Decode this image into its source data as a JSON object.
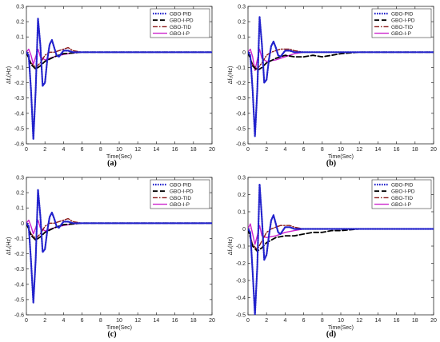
{
  "figure": {
    "series_styles": [
      {
        "name": "GBO-PID",
        "color": "#2222cc",
        "dash": "dotted"
      },
      {
        "name": "GBO-I-PD",
        "color": "#000000",
        "dash": "dashed"
      },
      {
        "name": "GBO-TID",
        "color": "#8b1a1a",
        "dash": "dashdot"
      },
      {
        "name": "GBO-I-P",
        "color": "#cc22cc",
        "dash": "solid"
      }
    ]
  },
  "chart_data": [
    {
      "type": "line",
      "panel_label": "(a)",
      "xlabel": "Time(Sec)",
      "ylabel": "Δf₁(Hz)",
      "xlim": [
        0,
        20
      ],
      "ylim": [
        -0.6,
        0.3
      ],
      "xticks": [
        "0",
        "2",
        "4",
        "6",
        "8",
        "10",
        "12",
        "14",
        "16",
        "18",
        "20"
      ],
      "yticks": [
        "0.3",
        "0.2",
        "0.1",
        "0",
        "-0.1",
        "-0.2",
        "-0.3",
        "-0.4",
        "-0.5",
        "-0.6"
      ],
      "legend_position": "top-right",
      "series": [
        {
          "name": "GBO-PID",
          "x": [
            0,
            0.25,
            0.5,
            0.75,
            1.0,
            1.25,
            1.5,
            1.75,
            2.0,
            2.25,
            2.5,
            2.75,
            3.0,
            3.25,
            3.5,
            3.75,
            4.0,
            4.5,
            5.0,
            6.0,
            7.0,
            8.0,
            10,
            12,
            15,
            20
          ],
          "y": [
            0,
            -0.02,
            -0.25,
            -0.57,
            -0.25,
            0.22,
            0.05,
            -0.22,
            -0.2,
            -0.05,
            0.05,
            0.08,
            0.03,
            -0.02,
            -0.03,
            -0.01,
            0.01,
            0.01,
            0,
            0,
            0,
            0,
            0,
            0,
            0,
            0
          ]
        },
        {
          "name": "GBO-I-PD",
          "x": [
            0,
            0.5,
            1.0,
            1.5,
            2.0,
            3.0,
            4.0,
            5.0,
            6.0,
            7.0,
            8.0,
            9.0,
            10,
            12,
            15,
            20
          ],
          "y": [
            0,
            -0.08,
            -0.11,
            -0.09,
            -0.06,
            -0.03,
            -0.01,
            -0.005,
            0,
            0,
            0,
            0,
            0,
            0,
            0,
            0
          ]
        },
        {
          "name": "GBO-TID",
          "x": [
            0,
            0.5,
            1.0,
            1.5,
            2.0,
            2.5,
            3.0,
            3.5,
            4.0,
            4.5,
            5.0,
            6.0,
            7.0,
            8.0,
            10,
            12,
            15,
            20
          ],
          "y": [
            0,
            -0.07,
            -0.1,
            -0.07,
            -0.02,
            0.0,
            0.0,
            0.01,
            0.02,
            0.03,
            0.01,
            0,
            0,
            0,
            0,
            0,
            0,
            0
          ]
        },
        {
          "name": "GBO-I-P",
          "x": [
            0,
            0.25,
            0.5,
            0.75,
            1.0,
            1.25,
            1.5,
            2.0,
            3.0,
            4.0,
            5.0,
            6.0,
            7.0,
            8.0,
            10,
            12,
            15,
            20
          ],
          "y": [
            0,
            0.02,
            -0.02,
            -0.08,
            -0.03,
            0.02,
            -0.03,
            -0.05,
            -0.03,
            -0.015,
            -0.005,
            0,
            0,
            0,
            0,
            0,
            0,
            0
          ]
        }
      ]
    },
    {
      "type": "line",
      "panel_label": "(b)",
      "xlabel": "Time(Sec)",
      "ylabel": "Δf₂(Hz)",
      "xlim": [
        0,
        20
      ],
      "ylim": [
        -0.6,
        0.3
      ],
      "xticks": [
        "0",
        "2",
        "4",
        "6",
        "8",
        "10",
        "12",
        "14",
        "16",
        "18",
        "20"
      ],
      "yticks": [
        "0.3",
        "0.2",
        "0.1",
        "0",
        "-0.1",
        "-0.2",
        "-0.3",
        "-0.4",
        "-0.5",
        "-0.6"
      ],
      "legend_position": "top-right",
      "series": [
        {
          "name": "GBO-PID",
          "x": [
            0,
            0.25,
            0.5,
            0.75,
            1.0,
            1.25,
            1.5,
            1.75,
            2.0,
            2.25,
            2.5,
            2.75,
            3.0,
            3.25,
            3.5,
            3.75,
            4.0,
            4.5,
            5.0,
            6.0,
            7.0,
            8.0,
            10,
            12,
            15,
            20
          ],
          "y": [
            0,
            -0.02,
            -0.25,
            -0.55,
            -0.25,
            0.23,
            0.05,
            -0.2,
            -0.18,
            -0.05,
            0.04,
            0.07,
            0.03,
            -0.02,
            -0.03,
            -0.01,
            0.01,
            0.01,
            0,
            0,
            0,
            0,
            0,
            0,
            0,
            0
          ]
        },
        {
          "name": "GBO-I-PD",
          "x": [
            0,
            0.5,
            1.0,
            1.5,
            2.0,
            3.0,
            4.0,
            5.0,
            6.0,
            7.0,
            8.0,
            9.0,
            10,
            12,
            15,
            20
          ],
          "y": [
            0,
            -0.09,
            -0.12,
            -0.1,
            -0.07,
            -0.04,
            -0.02,
            -0.03,
            -0.03,
            -0.02,
            -0.03,
            -0.02,
            -0.01,
            0,
            0,
            0
          ]
        },
        {
          "name": "GBO-TID",
          "x": [
            0,
            0.5,
            1.0,
            1.5,
            2.0,
            2.5,
            3.0,
            3.5,
            4.0,
            4.5,
            5.0,
            6.0,
            7.0,
            8.0,
            10,
            12,
            15,
            20
          ],
          "y": [
            0,
            -0.08,
            -0.11,
            -0.07,
            -0.02,
            0.0,
            0.01,
            0.02,
            0.02,
            0.02,
            0.01,
            0,
            0,
            0,
            0,
            0,
            0,
            0
          ]
        },
        {
          "name": "GBO-I-P",
          "x": [
            0,
            0.25,
            0.5,
            0.75,
            1.0,
            1.25,
            1.5,
            2.0,
            3.0,
            4.0,
            5.0,
            6.0,
            7.0,
            8.0,
            10,
            12,
            15,
            20
          ],
          "y": [
            0,
            0.02,
            -0.03,
            -0.12,
            -0.05,
            0.02,
            -0.04,
            -0.06,
            -0.05,
            -0.03,
            -0.01,
            0,
            0,
            0,
            0,
            0,
            0,
            0
          ]
        }
      ]
    },
    {
      "type": "line",
      "panel_label": "(c)",
      "xlabel": "Time(Sec)",
      "ylabel": "Δf₃(Hz)",
      "xlim": [
        0,
        20
      ],
      "ylim": [
        -0.6,
        0.3
      ],
      "xticks": [
        "0",
        "2",
        "4",
        "6",
        "8",
        "10",
        "12",
        "14",
        "16",
        "18",
        "20"
      ],
      "yticks": [
        "0.3",
        "0.2",
        "0.1",
        "0",
        "-0.1",
        "-0.2",
        "-0.3",
        "-0.4",
        "-0.5",
        "-0.6"
      ],
      "legend_position": "top-right",
      "series": [
        {
          "name": "GBO-PID",
          "x": [
            0,
            0.25,
            0.5,
            0.75,
            1.0,
            1.25,
            1.5,
            1.75,
            2.0,
            2.25,
            2.5,
            2.75,
            3.0,
            3.25,
            3.5,
            3.75,
            4.0,
            4.5,
            5.0,
            6.0,
            7.0,
            8.0,
            10,
            12,
            15,
            20
          ],
          "y": [
            0,
            -0.02,
            -0.25,
            -0.52,
            -0.24,
            0.22,
            0.05,
            -0.19,
            -0.17,
            -0.05,
            0.04,
            0.07,
            0.03,
            -0.02,
            -0.03,
            -0.01,
            0.01,
            0.01,
            0,
            0,
            0,
            0,
            0,
            0,
            0,
            0
          ]
        },
        {
          "name": "GBO-I-PD",
          "x": [
            0,
            0.5,
            1.0,
            1.5,
            2.0,
            3.0,
            4.0,
            5.0,
            6.0,
            7.0,
            8.0,
            9.0,
            10,
            12,
            15,
            20
          ],
          "y": [
            0,
            -0.08,
            -0.11,
            -0.09,
            -0.06,
            -0.03,
            -0.01,
            -0.005,
            0,
            0,
            0,
            0,
            0,
            0,
            0,
            0
          ]
        },
        {
          "name": "GBO-TID",
          "x": [
            0,
            0.5,
            1.0,
            1.5,
            2.0,
            2.5,
            3.0,
            3.5,
            4.0,
            4.5,
            5.0,
            6.0,
            7.0,
            8.0,
            10,
            12,
            15,
            20
          ],
          "y": [
            0,
            -0.07,
            -0.1,
            -0.07,
            -0.02,
            0.0,
            0.0,
            0.01,
            0.02,
            0.03,
            0.01,
            0,
            0,
            0,
            0,
            0,
            0,
            0
          ]
        },
        {
          "name": "GBO-I-P",
          "x": [
            0,
            0.25,
            0.5,
            0.75,
            1.0,
            1.25,
            1.5,
            2.0,
            3.0,
            4.0,
            5.0,
            6.0,
            7.0,
            8.0,
            10,
            12,
            15,
            20
          ],
          "y": [
            0,
            0.02,
            -0.02,
            -0.07,
            -0.03,
            0.02,
            -0.03,
            -0.05,
            -0.03,
            -0.015,
            -0.005,
            0,
            0,
            0,
            0,
            0,
            0,
            0
          ]
        }
      ]
    },
    {
      "type": "line",
      "panel_label": "(d)",
      "xlabel": "Time(Sec)",
      "ylabel": "Δf₄(Hz)",
      "xlim": [
        0,
        20
      ],
      "ylim": [
        -0.5,
        0.3
      ],
      "xticks": [
        "0",
        "2",
        "4",
        "6",
        "8",
        "10",
        "12",
        "14",
        "16",
        "18",
        "20"
      ],
      "yticks": [
        "0.3",
        "0.2",
        "0.1",
        "0",
        "-0.1",
        "-0.2",
        "-0.3",
        "-0.4",
        "-0.5"
      ],
      "legend_position": "top-right",
      "series": [
        {
          "name": "GBO-PID",
          "x": [
            0,
            0.25,
            0.5,
            0.75,
            1.0,
            1.25,
            1.5,
            1.75,
            2.0,
            2.25,
            2.5,
            2.75,
            3.0,
            3.25,
            3.5,
            3.75,
            4.0,
            4.5,
            5.0,
            6.0,
            7.0,
            8.0,
            10,
            12,
            15,
            20
          ],
          "y": [
            0,
            -0.02,
            -0.25,
            -0.5,
            -0.22,
            0.26,
            0.06,
            -0.18,
            -0.15,
            -0.04,
            0.05,
            0.08,
            0.03,
            -0.02,
            -0.03,
            -0.01,
            0.01,
            0.01,
            0,
            0,
            0,
            0,
            0,
            0,
            0,
            0
          ]
        },
        {
          "name": "GBO-I-PD",
          "x": [
            0,
            0.5,
            1.0,
            1.5,
            2.0,
            3.0,
            4.0,
            5.0,
            6.0,
            7.0,
            8.0,
            9.0,
            10,
            12,
            15,
            20
          ],
          "y": [
            0,
            -0.1,
            -0.13,
            -0.11,
            -0.08,
            -0.05,
            -0.04,
            -0.04,
            -0.03,
            -0.02,
            -0.02,
            -0.01,
            -0.01,
            0,
            0,
            0
          ]
        },
        {
          "name": "GBO-TID",
          "x": [
            0,
            0.5,
            1.0,
            1.5,
            2.0,
            2.5,
            3.0,
            3.5,
            4.0,
            4.5,
            5.0,
            6.0,
            7.0,
            8.0,
            10,
            12,
            15,
            20
          ],
          "y": [
            0,
            -0.09,
            -0.12,
            -0.07,
            -0.02,
            0.0,
            0.01,
            0.02,
            0.02,
            0.02,
            0.01,
            0,
            0,
            0,
            0,
            0,
            0,
            0
          ]
        },
        {
          "name": "GBO-I-P",
          "x": [
            0,
            0.25,
            0.5,
            0.75,
            1.0,
            1.25,
            1.5,
            2.0,
            3.0,
            4.0,
            5.0,
            6.0,
            7.0,
            8.0,
            10,
            12,
            15,
            20
          ],
          "y": [
            0,
            0.03,
            -0.03,
            -0.09,
            -0.04,
            0.02,
            -0.04,
            -0.05,
            -0.04,
            -0.02,
            -0.01,
            0,
            0,
            0,
            0,
            0,
            0,
            0
          ]
        }
      ]
    }
  ]
}
